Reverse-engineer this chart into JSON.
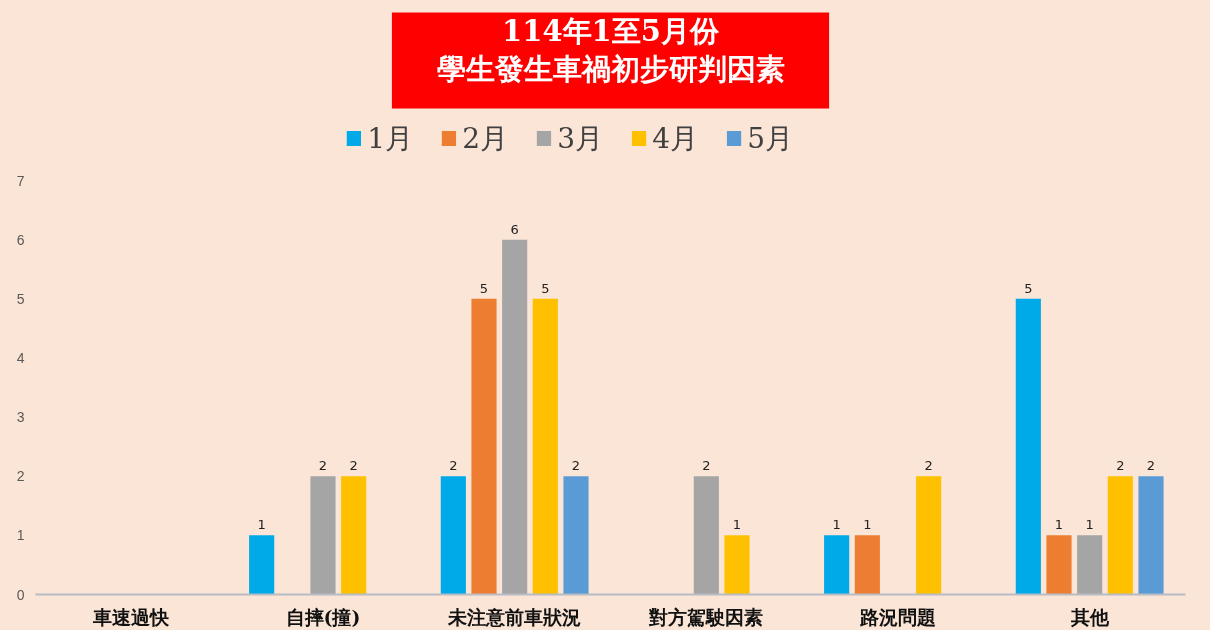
{
  "chart_data": {
    "type": "bar",
    "title": "114年1至5月份學生發生車禍初步研判因素",
    "categories": [
      "車速過快",
      "自摔(撞)",
      "未注意前車狀況",
      "對方駕駛因素",
      "路況問題",
      "其他"
    ],
    "series": [
      {
        "name": "1月",
        "color": "#00a9e8",
        "values": [
          null,
          1,
          2,
          null,
          1,
          5
        ]
      },
      {
        "name": "2月",
        "color": "#ed7d31",
        "values": [
          null,
          null,
          5,
          null,
          1,
          1
        ]
      },
      {
        "name": "3月",
        "color": "#a5a5a5",
        "values": [
          null,
          2,
          6,
          2,
          null,
          1
        ]
      },
      {
        "name": "4月",
        "color": "#ffc000",
        "values": [
          null,
          2,
          5,
          1,
          2,
          2
        ]
      },
      {
        "name": "5月",
        "color": "#5b9bd5",
        "values": [
          null,
          null,
          2,
          null,
          null,
          2
        ]
      }
    ],
    "ylim": [
      0,
      7
    ],
    "yticks": [
      0,
      1,
      2,
      3,
      4,
      5,
      6,
      7
    ],
    "grid": false,
    "legend": "top",
    "data_labels": true
  }
}
